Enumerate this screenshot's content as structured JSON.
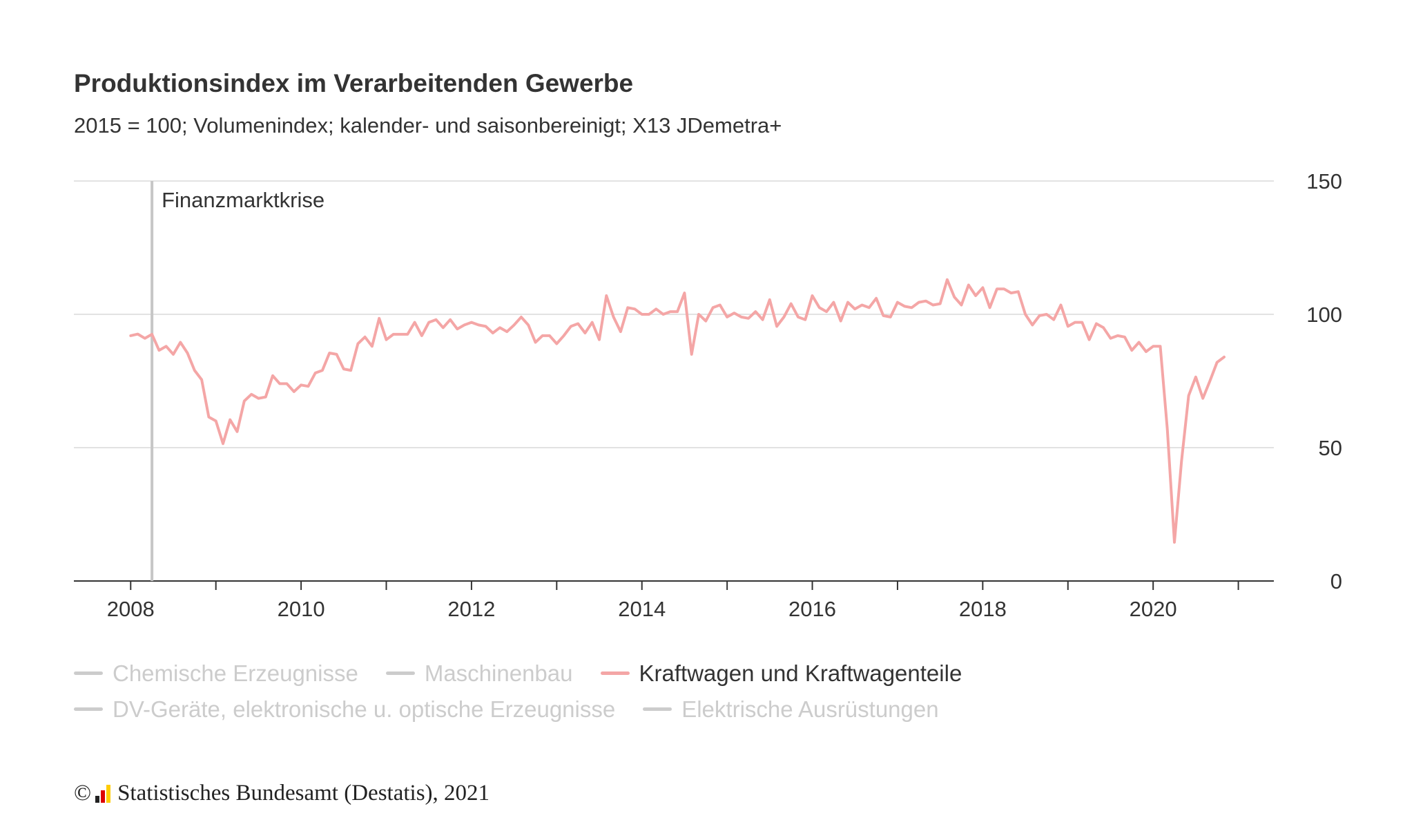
{
  "title": "Produktionsindex im Verarbeitenden Gewerbe",
  "subtitle": "2015 = 100; Volumenindex; kalender- und saisonbereinigt; X13 JDemetra+",
  "annotation": {
    "label": "Finanzmarktkrise",
    "date": "2008-04"
  },
  "colors": {
    "active_series": "#f4a6a6",
    "inactive": "#cccccc",
    "annotation_line": "#c6c6c6",
    "grid": "#d9d9d9",
    "axis": "#333333",
    "text": "#333333"
  },
  "legend": {
    "rows": [
      [
        {
          "label": "Chemische Erzeugnisse",
          "active": false
        },
        {
          "label": "Maschinenbau",
          "active": false
        },
        {
          "label": "Kraftwagen und Kraftwagenteile",
          "active": true
        }
      ],
      [
        {
          "label": "DV-Geräte, elektronische u. optische Erzeugnisse",
          "active": false
        },
        {
          "label": "Elektrische Ausrüstungen",
          "active": false
        }
      ]
    ]
  },
  "footer": {
    "copyright": "©",
    "text": "Statistisches Bundesamt (Destatis), 2021",
    "logo_colors": [
      "#222222",
      "#dd0000",
      "#ffcc00"
    ]
  },
  "chart_data": {
    "type": "line",
    "x_start": "2008-01",
    "x_frequency": "monthly",
    "x_ticks": [
      "2008",
      "2010",
      "2012",
      "2014",
      "2016",
      "2018",
      "2020"
    ],
    "xlim": [
      "2007-05",
      "2021-06"
    ],
    "y_ticks": [
      "0",
      "50",
      "100",
      "150"
    ],
    "ylim": [
      0,
      150
    ],
    "y_axis_side": "right",
    "grid": "horizontal",
    "series": [
      {
        "name": "Kraftwagen und Kraftwagenteile",
        "values": [
          92,
          92.6,
          91,
          92.5,
          86.5,
          88,
          85,
          89.5,
          85.5,
          79,
          75.5,
          61.5,
          60,
          51.5,
          60.5,
          56,
          67.5,
          70,
          68.5,
          69,
          77,
          74,
          74,
          71,
          73.5,
          73,
          78,
          79,
          85.5,
          85,
          79.5,
          79,
          89,
          91.5,
          88,
          98.5,
          90.5,
          92.5,
          92.5,
          92.5,
          97,
          92,
          97,
          98,
          95,
          98,
          94.5,
          96,
          97,
          96,
          95.5,
          93,
          95,
          93.5,
          96,
          99,
          96,
          89.5,
          92,
          92,
          89,
          92,
          95.5,
          96.5,
          93,
          97,
          90.5,
          107,
          99,
          93.5,
          102.5,
          102,
          100,
          100,
          102,
          100,
          101,
          101,
          108,
          85,
          100,
          97.5,
          102.5,
          103.5,
          99,
          100.5,
          99,
          98.5,
          101,
          98,
          105.5,
          95.5,
          99,
          104,
          99,
          98,
          107,
          102.5,
          101,
          104.5,
          97.5,
          104.5,
          102,
          103.5,
          102.5,
          106,
          99.5,
          99,
          104.5,
          103,
          102.5,
          104.5,
          105,
          103.5,
          104,
          113,
          106.5,
          103.5,
          111,
          107,
          110,
          102.5,
          109.5,
          109.5,
          108,
          108.5,
          100,
          96,
          99.5,
          100,
          98,
          103.5,
          95.5,
          97,
          97,
          90.5,
          96.5,
          95,
          91,
          92,
          91.5,
          86.5,
          89.5,
          86,
          88,
          88,
          57,
          14.5,
          45,
          69.5,
          76.5,
          68.5,
          75,
          82,
          84
        ]
      }
    ]
  }
}
